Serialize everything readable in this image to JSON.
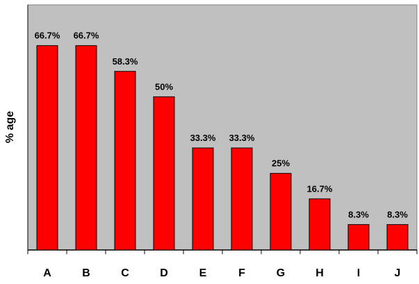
{
  "chart_data": {
    "type": "bar",
    "title": "",
    "xlabel": "",
    "ylabel": "% age",
    "categories": [
      "A",
      "B",
      "C",
      "D",
      "E",
      "F",
      "G",
      "H",
      "I",
      "J"
    ],
    "values": [
      66.7,
      66.7,
      58.3,
      50,
      33.3,
      33.3,
      25,
      16.7,
      8.3,
      8.3
    ],
    "data_labels": [
      "66.7%",
      "66.7%",
      "58.3%",
      "50%",
      "33.3%",
      "33.3%",
      "25%",
      "16.7%",
      "8.3%",
      "8.3%"
    ],
    "ylim": [
      0,
      80
    ],
    "grid": false,
    "legend": "none",
    "colors": {
      "bar": "#ff0000",
      "bar_border": "#000000",
      "plot_background": "#c0c0c0"
    }
  }
}
